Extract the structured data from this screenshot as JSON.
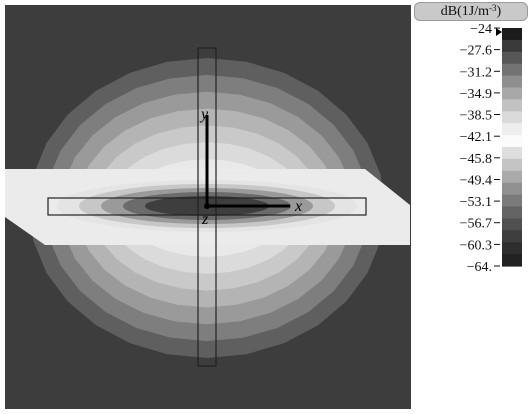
{
  "colorbar": {
    "title_base": "dB(1J/m",
    "title_sup": "-3",
    "title_end": ")",
    "tick_labels": [
      "-24",
      "-27.6",
      "-31.2",
      "-34.9",
      "-38.5",
      "-42.1",
      "-45.8",
      "-49.4",
      "-53.1",
      "-56.7",
      "-60.3",
      "-64."
    ],
    "band_colors": [
      "#1c1c1c",
      "#3a3a3a",
      "#575757",
      "#737373",
      "#8e8e8e",
      "#a8a8a8",
      "#c2c2c2",
      "#dadada",
      "#eeeeee",
      "#fbfbfb",
      "#dedede",
      "#c4c4c4",
      "#aaaaaa",
      "#919191",
      "#7a7a7a",
      "#646464",
      "#505050",
      "#3e3e3e",
      "#2e2e2e",
      "#222222"
    ]
  },
  "axes": {
    "x_label": "x",
    "y_label": "y",
    "z_label": "z"
  },
  "colors": {
    "background": "#3d3d3d",
    "ellipse_rings": [
      "#5f5f5f",
      "#7e7e7e",
      "#9a9a9a",
      "#b4b4b4",
      "#c9c9c9",
      "#dbdbdb",
      "#e9e9e9",
      "#f2f2f2"
    ],
    "core_gradient": [
      "#3e3e3e",
      "#6b6b6b",
      "#9a9a9a",
      "#c7c7c7",
      "#e4e4e4"
    ],
    "slab": "#ebebeb",
    "outline": "#222222"
  }
}
